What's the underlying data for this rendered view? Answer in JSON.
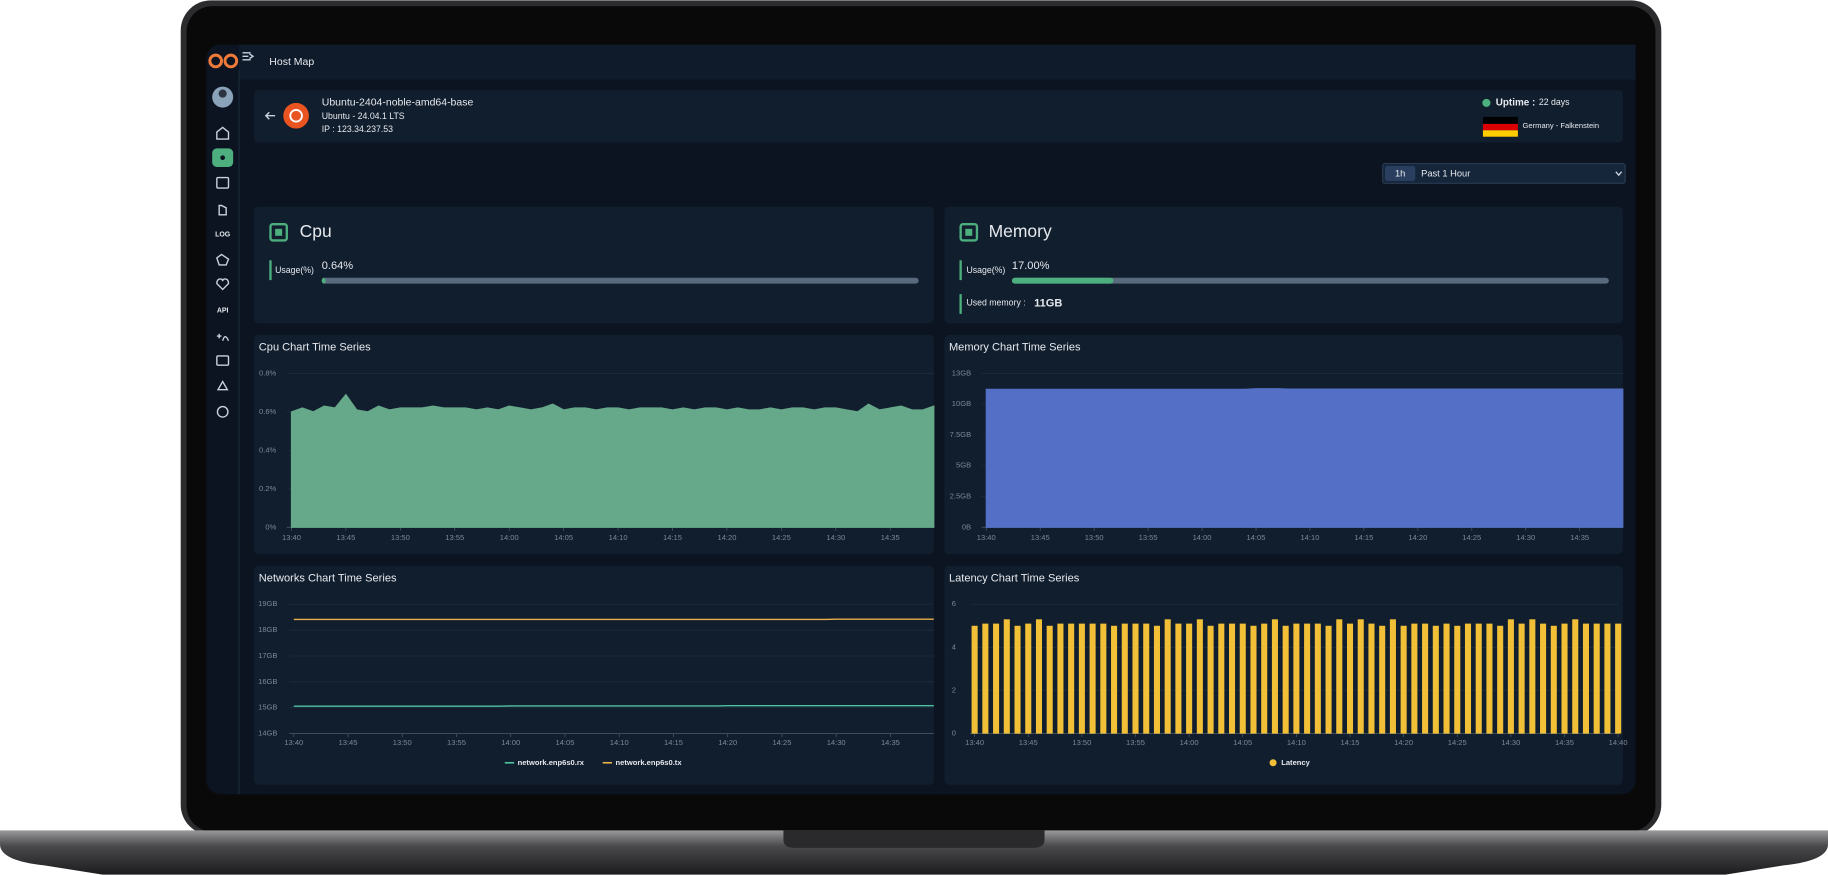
{
  "header": {
    "title": "Host Map"
  },
  "sidebar": {
    "log": "LOG",
    "api": "API"
  },
  "host": {
    "name": "Ubuntu-2404-noble-amd64-base",
    "os": "Ubuntu - 24.04.1 LTS",
    "ip": "IP :  123.34.237.53",
    "uptime_label": "Uptime :",
    "uptime": "22 days",
    "location": "Germany - Falkenstein"
  },
  "time_range": {
    "short": "1h",
    "label": "Past 1 Hour"
  },
  "cpu": {
    "title": "Cpu",
    "usage_label": "Usage(%)",
    "usage": {
      "value": 0.64,
      "label": "0.64%"
    }
  },
  "memory": {
    "title": "Memory",
    "usage_label": "Usage(%)",
    "usage": {
      "value": 17,
      "label": "17.00%"
    },
    "used_label": "Used memory :",
    "used": "11GB"
  },
  "chart_data": [
    {
      "type": "area",
      "title": "Cpu Chart Time Series",
      "categories": [
        "13:40",
        null,
        null,
        null,
        null,
        "13:45",
        null,
        null,
        null,
        null,
        "13:50",
        null,
        null,
        null,
        null,
        "13:55",
        null,
        null,
        null,
        null,
        "14:00",
        null,
        null,
        null,
        null,
        "14:05",
        null,
        null,
        null,
        null,
        "14:10",
        null,
        null,
        null,
        null,
        "14:15",
        null,
        null,
        null,
        null,
        "14:20",
        null,
        null,
        null,
        null,
        "14:25",
        null,
        null,
        null,
        null,
        "14:30",
        null,
        null,
        null,
        null,
        "14:35",
        null,
        null,
        null,
        null
      ],
      "values": [
        0.6,
        0.62,
        0.6,
        0.63,
        0.62,
        0.69,
        0.61,
        0.6,
        0.63,
        0.61,
        0.62,
        0.62,
        0.62,
        0.63,
        0.62,
        0.62,
        0.62,
        0.61,
        0.62,
        0.61,
        0.63,
        0.62,
        0.61,
        0.62,
        0.64,
        0.61,
        0.62,
        0.62,
        0.61,
        0.62,
        0.62,
        0.61,
        0.62,
        0.62,
        0.62,
        0.61,
        0.62,
        0.61,
        0.62,
        0.62,
        0.61,
        0.62,
        0.61,
        0.61,
        0.62,
        0.61,
        0.62,
        0.62,
        0.61,
        0.62,
        0.62,
        0.61,
        0.6,
        0.64,
        0.61,
        0.62,
        0.63,
        0.61,
        0.61,
        0.63
      ],
      "color": "#66a88a",
      "ylim": [
        0,
        0.8
      ],
      "yticks": [
        {
          "value": 0,
          "label": "0%"
        },
        {
          "value": 0.2,
          "label": "0.2%"
        },
        {
          "value": 0.4,
          "label": "0.4%"
        },
        {
          "value": 0.6,
          "label": "0.6%"
        },
        {
          "value": 0.8,
          "label": "0.8%"
        }
      ],
      "grid": true
    },
    {
      "type": "area",
      "title": "Memory Chart Time Series",
      "categories": [
        "13:40",
        null,
        null,
        null,
        null,
        "13:45",
        null,
        null,
        null,
        null,
        "13:50",
        null,
        null,
        null,
        null,
        "13:55",
        null,
        null,
        null,
        null,
        "14:00",
        null,
        null,
        null,
        null,
        "14:05",
        null,
        null,
        null,
        null,
        "14:10",
        null,
        null,
        null,
        null,
        "14:15",
        null,
        null,
        null,
        null,
        "14:20",
        null,
        null,
        null,
        null,
        "14:25",
        null,
        null,
        null,
        null,
        "14:30",
        null,
        null,
        null,
        null,
        "14:35",
        null,
        null,
        null,
        null
      ],
      "values": [
        11.2,
        11.2,
        11.2,
        11.2,
        11.2,
        11.2,
        11.2,
        11.2,
        11.2,
        11.2,
        11.2,
        11.2,
        11.2,
        11.2,
        11.2,
        11.2,
        11.2,
        11.2,
        11.2,
        11.2,
        11.2,
        11.2,
        11.2,
        11.2,
        11.2,
        11.25,
        11.25,
        11.25,
        11.22,
        11.22,
        11.22,
        11.22,
        11.22,
        11.22,
        11.22,
        11.22,
        11.22,
        11.22,
        11.22,
        11.22,
        11.22,
        11.22,
        11.22,
        11.22,
        11.22,
        11.22,
        11.22,
        11.22,
        11.22,
        11.22,
        11.22,
        11.22,
        11.22,
        11.22,
        11.22,
        11.22,
        11.22,
        11.22,
        11.22,
        11.22
      ],
      "color": "#5470c6",
      "ylim": [
        0,
        12.5
      ],
      "yticks": [
        {
          "value": 0,
          "label": "0B"
        },
        {
          "value": 2.5,
          "label": "2.5GB"
        },
        {
          "value": 5,
          "label": "5GB"
        },
        {
          "value": 7.5,
          "label": "7.5GB"
        },
        {
          "value": 10,
          "label": "10GB"
        },
        {
          "value": 12.5,
          "label": "13GB"
        }
      ],
      "grid": true
    },
    {
      "type": "line",
      "title": "Networks Chart Time Series",
      "categories": [
        "13:40",
        null,
        null,
        null,
        null,
        "13:45",
        null,
        null,
        null,
        null,
        "13:50",
        null,
        null,
        null,
        null,
        "13:55",
        null,
        null,
        null,
        null,
        "14:00",
        null,
        null,
        null,
        null,
        "14:05",
        null,
        null,
        null,
        null,
        "14:10",
        null,
        null,
        null,
        null,
        "14:15",
        null,
        null,
        null,
        null,
        "14:20",
        null,
        null,
        null,
        null,
        "14:25",
        null,
        null,
        null,
        null,
        "14:30",
        null,
        null,
        null,
        null,
        "14:35",
        null,
        null,
        null,
        null
      ],
      "series": [
        {
          "name": "network.enp6s0.rx",
          "color": "#4fc3a1",
          "values": [
            15.06,
            15.06,
            15.06,
            15.06,
            15.06,
            15.06,
            15.06,
            15.06,
            15.06,
            15.06,
            15.06,
            15.06,
            15.06,
            15.06,
            15.06,
            15.06,
            15.06,
            15.06,
            15.06,
            15.06,
            15.07,
            15.07,
            15.07,
            15.07,
            15.07,
            15.07,
            15.07,
            15.07,
            15.07,
            15.07,
            15.07,
            15.07,
            15.07,
            15.07,
            15.07,
            15.07,
            15.07,
            15.07,
            15.07,
            15.07,
            15.08,
            15.08,
            15.08,
            15.08,
            15.08,
            15.08,
            15.08,
            15.08,
            15.08,
            15.08,
            15.08,
            15.08,
            15.08,
            15.08,
            15.08,
            15.08,
            15.08,
            15.08,
            15.08,
            15.08
          ]
        },
        {
          "name": "network.enp6s0.tx",
          "color": "#e8b04b",
          "values": [
            18.41,
            18.41,
            18.41,
            18.41,
            18.41,
            18.41,
            18.41,
            18.41,
            18.41,
            18.41,
            18.41,
            18.41,
            18.41,
            18.41,
            18.41,
            18.41,
            18.41,
            18.41,
            18.41,
            18.41,
            18.41,
            18.41,
            18.41,
            18.41,
            18.41,
            18.41,
            18.41,
            18.41,
            18.41,
            18.41,
            18.41,
            18.41,
            18.41,
            18.41,
            18.41,
            18.41,
            18.41,
            18.41,
            18.41,
            18.41,
            18.41,
            18.41,
            18.41,
            18.41,
            18.41,
            18.41,
            18.41,
            18.41,
            18.41,
            18.41,
            18.42,
            18.42,
            18.42,
            18.42,
            18.42,
            18.42,
            18.42,
            18.42,
            18.42,
            18.42
          ]
        }
      ],
      "ylim": [
        14,
        19
      ],
      "yticks": [
        {
          "value": 14,
          "label": "14GB"
        },
        {
          "value": 15,
          "label": "15GB"
        },
        {
          "value": 16,
          "label": "16GB"
        },
        {
          "value": 17,
          "label": "17GB"
        },
        {
          "value": 18,
          "label": "18GB"
        },
        {
          "value": 19,
          "label": "19GB"
        }
      ],
      "grid": true
    },
    {
      "type": "bar",
      "title": "Latency Chart Time Series",
      "categories": [
        "13:40",
        null,
        null,
        null,
        null,
        "13:45",
        null,
        null,
        null,
        null,
        "13:50",
        null,
        null,
        null,
        null,
        "13:55",
        null,
        null,
        null,
        null,
        "14:00",
        null,
        null,
        null,
        null,
        "14:05",
        null,
        null,
        null,
        null,
        "14:10",
        null,
        null,
        null,
        null,
        "14:15",
        null,
        null,
        null,
        null,
        "14:20",
        null,
        null,
        null,
        null,
        "14:25",
        null,
        null,
        null,
        null,
        "14:30",
        null,
        null,
        null,
        null,
        "14:35",
        null,
        null,
        null,
        null,
        "14:40"
      ],
      "series": [
        {
          "name": "Latency",
          "color": "#f2c037",
          "values": [
            5.0,
            5.1,
            5.1,
            5.3,
            5.0,
            5.1,
            5.3,
            5.0,
            5.1,
            5.1,
            5.1,
            5.1,
            5.1,
            5.0,
            5.1,
            5.1,
            5.1,
            5.0,
            5.3,
            5.1,
            5.1,
            5.3,
            5.0,
            5.1,
            5.1,
            5.1,
            5.0,
            5.1,
            5.3,
            5.0,
            5.1,
            5.1,
            5.1,
            5.0,
            5.3,
            5.1,
            5.3,
            5.1,
            5.0,
            5.3,
            5.0,
            5.1,
            5.1,
            5.0,
            5.1,
            5.0,
            5.1,
            5.1,
            5.1,
            5.0,
            5.3,
            5.1,
            5.3,
            5.1,
            5.0,
            5.1,
            5.3,
            5.1,
            5.1,
            5.1,
            5.1
          ]
        }
      ],
      "ylim": [
        0,
        6
      ],
      "yticks": [
        0,
        2,
        4,
        6
      ],
      "grid": true
    }
  ]
}
